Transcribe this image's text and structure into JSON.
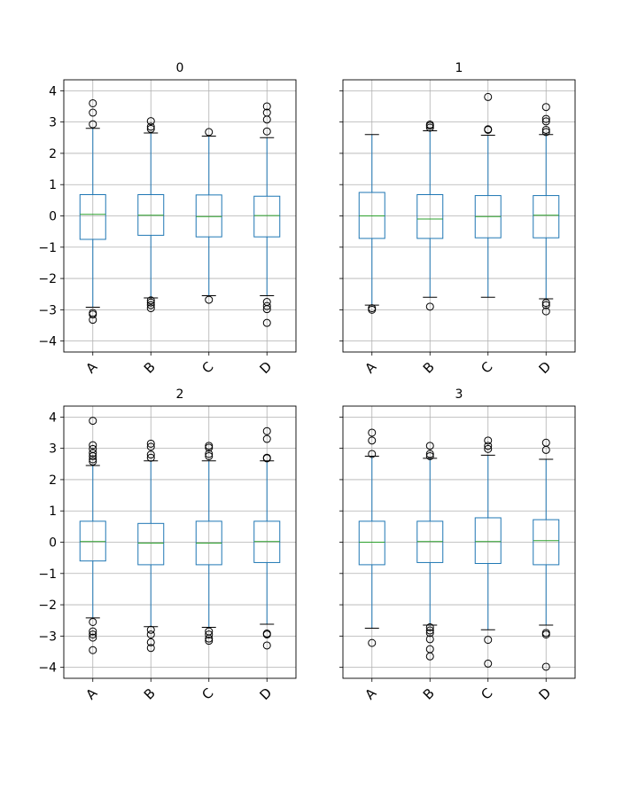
{
  "chart_data": [
    {
      "type": "box",
      "title": "0",
      "categories": [
        "A",
        "B",
        "C",
        "D"
      ],
      "yticks": [
        -4,
        -3,
        -2,
        -1,
        0,
        1,
        2,
        3,
        4
      ],
      "ylim": [
        -4.35,
        4.35
      ],
      "grid": true,
      "sharey": true,
      "boxes": [
        {
          "name": "A",
          "q1": -0.75,
          "median": 0.05,
          "q3": 0.68,
          "whisker_low": -2.92,
          "whisker_high": 2.8,
          "outliers": [
            2.93,
            3.3,
            3.6,
            -3.1,
            -3.15,
            -3.32
          ]
        },
        {
          "name": "B",
          "q1": -0.62,
          "median": 0.02,
          "q3": 0.68,
          "whisker_low": -2.62,
          "whisker_high": 2.65,
          "outliers": [
            2.78,
            2.85,
            3.03,
            -2.7,
            -2.77,
            -2.85,
            -2.95
          ]
        },
        {
          "name": "C",
          "q1": -0.67,
          "median": -0.02,
          "q3": 0.67,
          "whisker_low": -2.55,
          "whisker_high": 2.55,
          "outliers": [
            2.68,
            -2.68
          ]
        },
        {
          "name": "D",
          "q1": -0.67,
          "median": 0.01,
          "q3": 0.63,
          "whisker_low": -2.55,
          "whisker_high": 2.5,
          "outliers": [
            2.7,
            3.08,
            3.3,
            3.5,
            -2.75,
            -2.88,
            -2.98,
            -3.42
          ]
        }
      ]
    },
    {
      "type": "box",
      "title": "1",
      "categories": [
        "A",
        "B",
        "C",
        "D"
      ],
      "yticks": [
        -4,
        -3,
        -2,
        -1,
        0,
        1,
        2,
        3,
        4
      ],
      "ylim": [
        -4.35,
        4.35
      ],
      "grid": true,
      "sharey": true,
      "boxes": [
        {
          "name": "A",
          "q1": -0.72,
          "median": 0.0,
          "q3": 0.75,
          "whisker_low": -2.85,
          "whisker_high": 2.6,
          "outliers": [
            -2.95,
            -3.0
          ]
        },
        {
          "name": "B",
          "q1": -0.72,
          "median": -0.1,
          "q3": 0.68,
          "whisker_low": -2.6,
          "whisker_high": 2.72,
          "outliers": [
            2.82,
            2.88,
            2.92,
            -2.9
          ]
        },
        {
          "name": "C",
          "q1": -0.7,
          "median": -0.02,
          "q3": 0.65,
          "whisker_low": -2.6,
          "whisker_high": 2.58,
          "outliers": [
            2.75,
            2.77,
            3.8
          ]
        },
        {
          "name": "D",
          "q1": -0.7,
          "median": 0.02,
          "q3": 0.65,
          "whisker_low": -2.65,
          "whisker_high": 2.6,
          "outliers": [
            2.68,
            2.75,
            3.02,
            3.1,
            3.48,
            -2.78,
            -2.85,
            -3.05
          ]
        }
      ]
    },
    {
      "type": "box",
      "title": "2",
      "categories": [
        "A",
        "B",
        "C",
        "D"
      ],
      "yticks": [
        -4,
        -3,
        -2,
        -1,
        0,
        1,
        2,
        3,
        4
      ],
      "ylim": [
        -4.35,
        4.35
      ],
      "grid": true,
      "sharey": true,
      "boxes": [
        {
          "name": "A",
          "q1": -0.6,
          "median": 0.02,
          "q3": 0.67,
          "whisker_low": -2.42,
          "whisker_high": 2.45,
          "outliers": [
            2.58,
            2.65,
            2.75,
            2.85,
            2.98,
            3.1,
            3.88,
            -2.55,
            -2.85,
            -2.95,
            -3.05,
            -3.45
          ]
        },
        {
          "name": "B",
          "q1": -0.72,
          "median": -0.03,
          "q3": 0.6,
          "whisker_low": -2.7,
          "whisker_high": 2.6,
          "outliers": [
            2.7,
            2.8,
            3.05,
            3.15,
            -2.8,
            -2.95,
            -3.2,
            -3.38
          ]
        },
        {
          "name": "C",
          "q1": -0.72,
          "median": -0.03,
          "q3": 0.67,
          "whisker_low": -2.72,
          "whisker_high": 2.6,
          "outliers": [
            2.75,
            2.82,
            3.02,
            3.08,
            -2.85,
            -2.95,
            -3.08,
            -3.15
          ]
        },
        {
          "name": "D",
          "q1": -0.65,
          "median": 0.02,
          "q3": 0.67,
          "whisker_low": -2.62,
          "whisker_high": 2.6,
          "outliers": [
            2.68,
            2.7,
            3.3,
            3.55,
            -2.92,
            -2.95,
            -3.3
          ]
        }
      ]
    },
    {
      "type": "box",
      "title": "3",
      "categories": [
        "A",
        "B",
        "C",
        "D"
      ],
      "yticks": [
        -4,
        -3,
        -2,
        -1,
        0,
        1,
        2,
        3,
        4
      ],
      "ylim": [
        -4.35,
        4.35
      ],
      "grid": true,
      "sharey": true,
      "boxes": [
        {
          "name": "A",
          "q1": -0.72,
          "median": 0.0,
          "q3": 0.67,
          "whisker_low": -2.75,
          "whisker_high": 2.75,
          "outliers": [
            2.82,
            3.25,
            3.5,
            -3.22
          ]
        },
        {
          "name": "B",
          "q1": -0.65,
          "median": 0.02,
          "q3": 0.67,
          "whisker_low": -2.65,
          "whisker_high": 2.68,
          "outliers": [
            2.75,
            2.82,
            3.08,
            -2.72,
            -2.82,
            -2.9,
            -3.1,
            -3.42,
            -3.65
          ]
        },
        {
          "name": "C",
          "q1": -0.68,
          "median": 0.02,
          "q3": 0.78,
          "whisker_low": -2.8,
          "whisker_high": 2.78,
          "outliers": [
            2.98,
            3.08,
            3.25,
            -3.12,
            -3.88
          ]
        },
        {
          "name": "D",
          "q1": -0.72,
          "median": 0.05,
          "q3": 0.72,
          "whisker_low": -2.65,
          "whisker_high": 2.65,
          "outliers": [
            2.95,
            3.18,
            -2.9,
            -2.95,
            -3.98
          ]
        }
      ]
    }
  ],
  "colors": {
    "box": "#1f77b4",
    "median": "#2ca02c",
    "grid": "#b0b0b0",
    "axis": "#000000",
    "outlier": "#000000",
    "background": "#ffffff"
  }
}
